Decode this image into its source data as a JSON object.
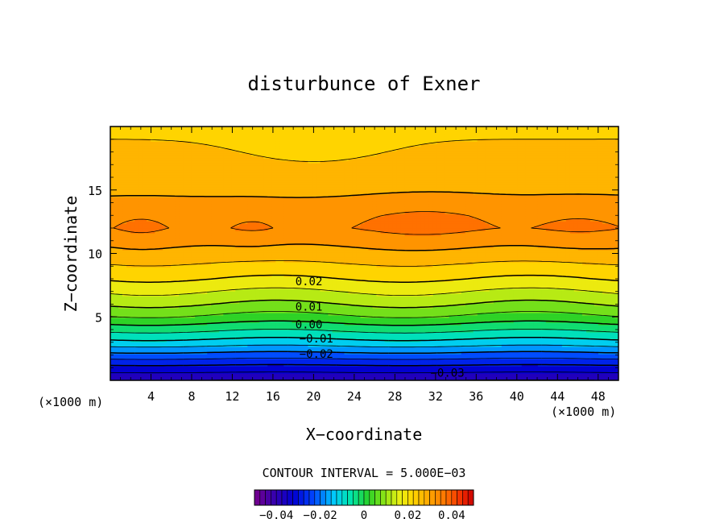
{
  "chart_data": {
    "type": "heatmap",
    "title": "disturbunce of Exner",
    "xlabel": "X−coordinate",
    "ylabel": "Z−coordinate",
    "x_unit_label": "(×1000 m)",
    "y_unit_label": "(×1000 m)",
    "xlim": [
      0,
      50
    ],
    "ylim": [
      0,
      20
    ],
    "x_ticks": [
      4,
      8,
      12,
      16,
      20,
      24,
      28,
      32,
      36,
      40,
      44,
      48
    ],
    "y_ticks": [
      5,
      10,
      15
    ],
    "contour_interval_text": "CONTOUR INTERVAL = 5.000E−03",
    "contour_interval": 0.005,
    "color_range": [
      -0.05,
      0.05
    ],
    "colorbar_ticks": [
      {
        "value": -0.04,
        "label": "−0.04"
      },
      {
        "value": -0.02,
        "label": "−0.02"
      },
      {
        "value": 0,
        "label": "0"
      },
      {
        "value": 0.02,
        "label": "0.02"
      },
      {
        "value": 0.04,
        "label": "0.04"
      }
    ],
    "contour_labels": [
      {
        "text": "0.02",
        "x": 18.2,
        "y": 7.8
      },
      {
        "text": "0.01",
        "x": 18.2,
        "y": 5.8
      },
      {
        "text": "0.00",
        "x": 18.2,
        "y": 4.4
      },
      {
        "text": "−0.01",
        "x": 18.6,
        "y": 3.3
      },
      {
        "text": "−0.02",
        "x": 18.6,
        "y": 2.1
      },
      {
        "text": "−0.03",
        "x": 31.5,
        "y": 0.6
      }
    ],
    "field_description": "Exner disturbance increasing with height: about -0.04 near the surface, 0 near z=4.5 km, 0.02 near z=8 km, peak about 0.035 near z=12 km, decreasing to about 0.025 at the top.",
    "vertical_profile": {
      "z": [
        0,
        1,
        2,
        3,
        4,
        4.5,
        5,
        6,
        7,
        8,
        9,
        10,
        11,
        12,
        13,
        14,
        15,
        16,
        17,
        18,
        19,
        20
      ],
      "value": [
        -0.04,
        -0.032,
        -0.022,
        -0.012,
        -0.004,
        0.0,
        0.004,
        0.01,
        0.015,
        0.02,
        0.024,
        0.028,
        0.031,
        0.034,
        0.033,
        0.031,
        0.029,
        0.028,
        0.027,
        0.026,
        0.025,
        0.024
      ]
    }
  }
}
